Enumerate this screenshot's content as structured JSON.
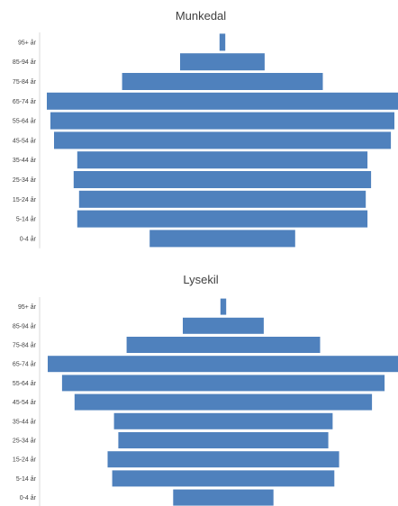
{
  "chart_data": [
    {
      "type": "bar",
      "orientation": "horizontal",
      "style": "population-pyramid",
      "title": "Munkedal",
      "categories": [
        "95+ år",
        "85-94 år",
        "75-84 år",
        "65-74 år",
        "55-64 år",
        "45-54 år",
        "35-44 år",
        "25-34 år",
        "15-24 år",
        "5-14 år",
        "0-4 år"
      ],
      "values": [
        0.8,
        11.8,
        28.0,
        49.0,
        48.0,
        47.0,
        40.5,
        41.5,
        40.0,
        40.5,
        20.3
      ],
      "xlim": [
        0,
        49
      ],
      "color": "#4f81bd",
      "grid": false,
      "legend": "none"
    },
    {
      "type": "bar",
      "orientation": "horizontal",
      "style": "population-pyramid",
      "title": "Lysekil",
      "categories": [
        "95+ år",
        "85-94 år",
        "75-84 år",
        "65-74 år",
        "55-64 år",
        "45-54 år",
        "35-44 år",
        "25-34 år",
        "15-24 år",
        "5-14 år",
        "0-4 år"
      ],
      "values": [
        0.8,
        11.3,
        27.0,
        49.0,
        45.0,
        41.5,
        30.5,
        29.3,
        32.3,
        31.0,
        14.0
      ],
      "xlim": [
        0,
        49
      ],
      "color": "#4f81bd",
      "grid": false,
      "legend": "none"
    }
  ]
}
